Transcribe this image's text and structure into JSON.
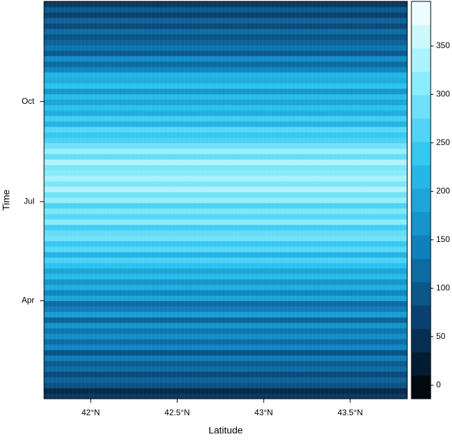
{
  "chart_data": {
    "type": "heatmap",
    "xlabel": "Latitude",
    "ylabel": "Time",
    "xlim": [
      41.73,
      43.83
    ],
    "xticks": [
      {
        "value": 42,
        "label": "42°N"
      },
      {
        "value": 42.5,
        "label": "42.5°N"
      },
      {
        "value": 43,
        "label": "43°N"
      },
      {
        "value": 43.5,
        "label": "43.5°N"
      }
    ],
    "ylim": [
      1,
      366
    ],
    "yticks": [
      {
        "value": 91,
        "label": "Apr"
      },
      {
        "value": 182,
        "label": "Jul"
      },
      {
        "value": 274,
        "label": "Oct"
      }
    ],
    "values": [
      60,
      40,
      90,
      110,
      80,
      120,
      100,
      140,
      90,
      150,
      120,
      160,
      130,
      170,
      110,
      180,
      140,
      120,
      190,
      150,
      200,
      170,
      220,
      190,
      230,
      260,
      210,
      270,
      240,
      290,
      280,
      250,
      310,
      270,
      300,
      260,
      320,
      290,
      340,
      300,
      330,
      310,
      300,
      340,
      280,
      320,
      290,
      260,
      240,
      270,
      210,
      250,
      200,
      230,
      190,
      220,
      170,
      230,
      200,
      210,
      150,
      120,
      160,
      100,
      130,
      110,
      90,
      120,
      80,
      110,
      70,
      100,
      60
    ],
    "colorscale": [
      "#000000",
      "#0a3f6e",
      "#0f86c2",
      "#2cc4f0",
      "#8eeefc",
      "#ffffff"
    ],
    "clim": [
      -14,
      396
    ],
    "cticks": [
      0,
      50,
      100,
      150,
      200,
      250,
      300,
      350
    ]
  }
}
